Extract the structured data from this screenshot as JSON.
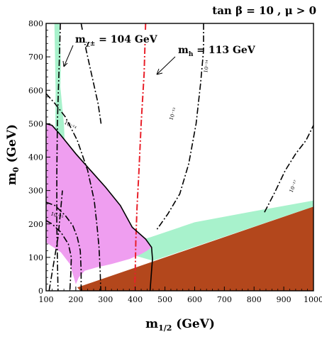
{
  "chart_data": {
    "type": "area",
    "title": "tan β = 10 ,  μ > 0",
    "xlabel": "m",
    "xlabel_sub": "1/2",
    "xlabel_unit": " (GeV)",
    "ylabel": "m",
    "ylabel_sub": "0",
    "ylabel_unit": " (GeV)",
    "xlim": [
      100,
      1000
    ],
    "ylim": [
      0,
      800
    ],
    "x_ticks": [
      100,
      200,
      300,
      400,
      500,
      600,
      700,
      800,
      900,
      1000
    ],
    "y_ticks": [
      0,
      100,
      200,
      300,
      400,
      500,
      600,
      700,
      800
    ],
    "grid": false,
    "colors": {
      "charged_lsp": "#b3471c",
      "coannihilation": "#a8f2cc",
      "g_minus_2": "#ef9ef0",
      "higgs_line": "#e8202a",
      "contour": "#000000"
    },
    "regions": [
      {
        "name": "charged-lsp",
        "color": "#b3471c",
        "points": [
          [
            215,
            0
          ],
          [
            1000,
            0
          ],
          [
            1000,
            252
          ],
          [
            205,
            10
          ]
        ]
      },
      {
        "name": "coannihilation",
        "color": "#a8f2cc",
        "points": [
          [
            128,
            800
          ],
          [
            145,
            800
          ],
          [
            150,
            680
          ],
          [
            148,
            610
          ],
          [
            160,
            500
          ],
          [
            175,
            200
          ],
          [
            215,
            120
          ],
          [
            270,
            105
          ],
          [
            360,
            115
          ],
          [
            420,
            100
          ],
          [
            460,
            90
          ],
          [
            1000,
            252
          ],
          [
            1000,
            270
          ],
          [
            950,
            262
          ],
          [
            800,
            238
          ],
          [
            600,
            205
          ],
          [
            450,
            160
          ],
          [
            390,
            145
          ],
          [
            350,
            140
          ],
          [
            300,
            140
          ],
          [
            220,
            145
          ],
          [
            175,
            160
          ],
          [
            130,
            200
          ],
          [
            128,
            280
          ],
          [
            132,
            590
          ],
          [
            132,
            600
          ]
        ]
      },
      {
        "name": "g-2",
        "color": "#ef9ef0",
        "points": [
          [
            100,
            500
          ],
          [
            120,
            495
          ],
          [
            150,
            465
          ],
          [
            200,
            410
          ],
          [
            250,
            360
          ],
          [
            300,
            310
          ],
          [
            350,
            255
          ],
          [
            390,
            190
          ],
          [
            435,
            155
          ],
          [
            455,
            130
          ],
          [
            440,
            120
          ],
          [
            420,
            110
          ],
          [
            380,
            95
          ],
          [
            320,
            80
          ],
          [
            270,
            70
          ],
          [
            230,
            60
          ],
          [
            210,
            40
          ],
          [
            200,
            20
          ],
          [
            180,
            80
          ],
          [
            150,
            115
          ],
          [
            125,
            130
          ],
          [
            100,
            145
          ]
        ]
      }
    ],
    "lines": [
      {
        "name": "chargino-104",
        "style": "dashdot",
        "color": "#000000",
        "points": [
          [
            148,
            800
          ],
          [
            145,
            700
          ],
          [
            142,
            620
          ],
          [
            138,
            500
          ],
          [
            136,
            350
          ],
          [
            136,
            200
          ],
          [
            138,
            100
          ],
          [
            140,
            0
          ]
        ]
      },
      {
        "name": "higgs-113",
        "style": "dashdot",
        "color": "#e8202a",
        "points": [
          [
            435,
            800
          ],
          [
            430,
            650
          ],
          [
            420,
            500
          ],
          [
            412,
            350
          ],
          [
            406,
            250
          ],
          [
            402,
            150
          ],
          [
            400,
            60
          ],
          [
            398,
            0
          ]
        ]
      },
      {
        "name": "g2-boundary",
        "style": "solid",
        "color": "#000000",
        "points": [
          [
            100,
            500
          ],
          [
            120,
            495
          ],
          [
            150,
            465
          ],
          [
            200,
            410
          ],
          [
            250,
            360
          ],
          [
            300,
            310
          ],
          [
            350,
            255
          ],
          [
            390,
            190
          ],
          [
            435,
            155
          ],
          [
            455,
            130
          ],
          [
            458,
            95
          ],
          [
            455,
            60
          ],
          [
            450,
            0
          ]
        ]
      },
      {
        "name": "contour-1e-13",
        "style": "dashdot",
        "color": "#000000",
        "points": [
          [
            218,
            800
          ],
          [
            235,
            720
          ],
          [
            255,
            640
          ],
          [
            275,
            560
          ],
          [
            285,
            500
          ]
        ]
      },
      {
        "name": "contour-1e-14-right",
        "style": "dashdot",
        "color": "#000000",
        "points": [
          [
            630,
            800
          ],
          [
            630,
            720
          ],
          [
            620,
            620
          ],
          [
            605,
            500
          ],
          [
            580,
            380
          ],
          [
            550,
            290
          ],
          [
            510,
            230
          ],
          [
            470,
            180
          ]
        ]
      },
      {
        "name": "contour-1e-14-left",
        "style": "dashdot",
        "color": "#000000",
        "points": [
          [
            100,
            590
          ],
          [
            130,
            560
          ],
          [
            165,
            520
          ],
          [
            205,
            450
          ],
          [
            240,
            360
          ],
          [
            262,
            270
          ],
          [
            272,
            190
          ],
          [
            278,
            130
          ],
          [
            282,
            60
          ],
          [
            284,
            0
          ]
        ]
      },
      {
        "name": "contour-1e-15",
        "style": "dashdot",
        "color": "#000000",
        "points": [
          [
            100,
            265
          ],
          [
            130,
            255
          ],
          [
            165,
            225
          ],
          [
            190,
            195
          ],
          [
            205,
            160
          ],
          [
            215,
            120
          ],
          [
            218,
            60
          ],
          [
            218,
            0
          ]
        ]
      },
      {
        "name": "contour-inner",
        "style": "dashdot",
        "color": "#000000",
        "points": [
          [
            100,
            210
          ],
          [
            120,
            200
          ],
          [
            150,
            175
          ],
          [
            175,
            140
          ],
          [
            185,
            100
          ],
          [
            183,
            50
          ],
          [
            180,
            0
          ]
        ]
      },
      {
        "name": "contour-1e-17",
        "style": "dashdot",
        "color": "#000000",
        "points": [
          [
            835,
            235
          ],
          [
            870,
            295
          ],
          [
            905,
            360
          ],
          [
            940,
            410
          ],
          [
            975,
            450
          ],
          [
            1000,
            495
          ]
        ]
      },
      {
        "name": "contour-low",
        "style": "dashdot",
        "color": "#000000",
        "points": [
          [
            110,
            0
          ],
          [
            125,
            80
          ],
          [
            140,
            160
          ],
          [
            150,
            250
          ],
          [
            155,
            300
          ]
        ]
      }
    ],
    "annotations": [
      {
        "name": "chargino-label",
        "text": "m",
        "sub": "χ±",
        "rest": " = 104 GeV"
      },
      {
        "name": "higgs-label",
        "text": "m",
        "sub": "h",
        "rest": "  = 113 GeV"
      },
      {
        "name": "contour-label-a",
        "text": "10⁻¹³"
      },
      {
        "name": "contour-label-b",
        "text": "10⁻¹⁴"
      },
      {
        "name": "contour-label-c",
        "text": "10⁻¹⁴"
      },
      {
        "name": "contour-label-d",
        "text": "10⁻¹⁵"
      },
      {
        "name": "contour-label-e",
        "text": "10⁻¹⁷"
      }
    ]
  }
}
